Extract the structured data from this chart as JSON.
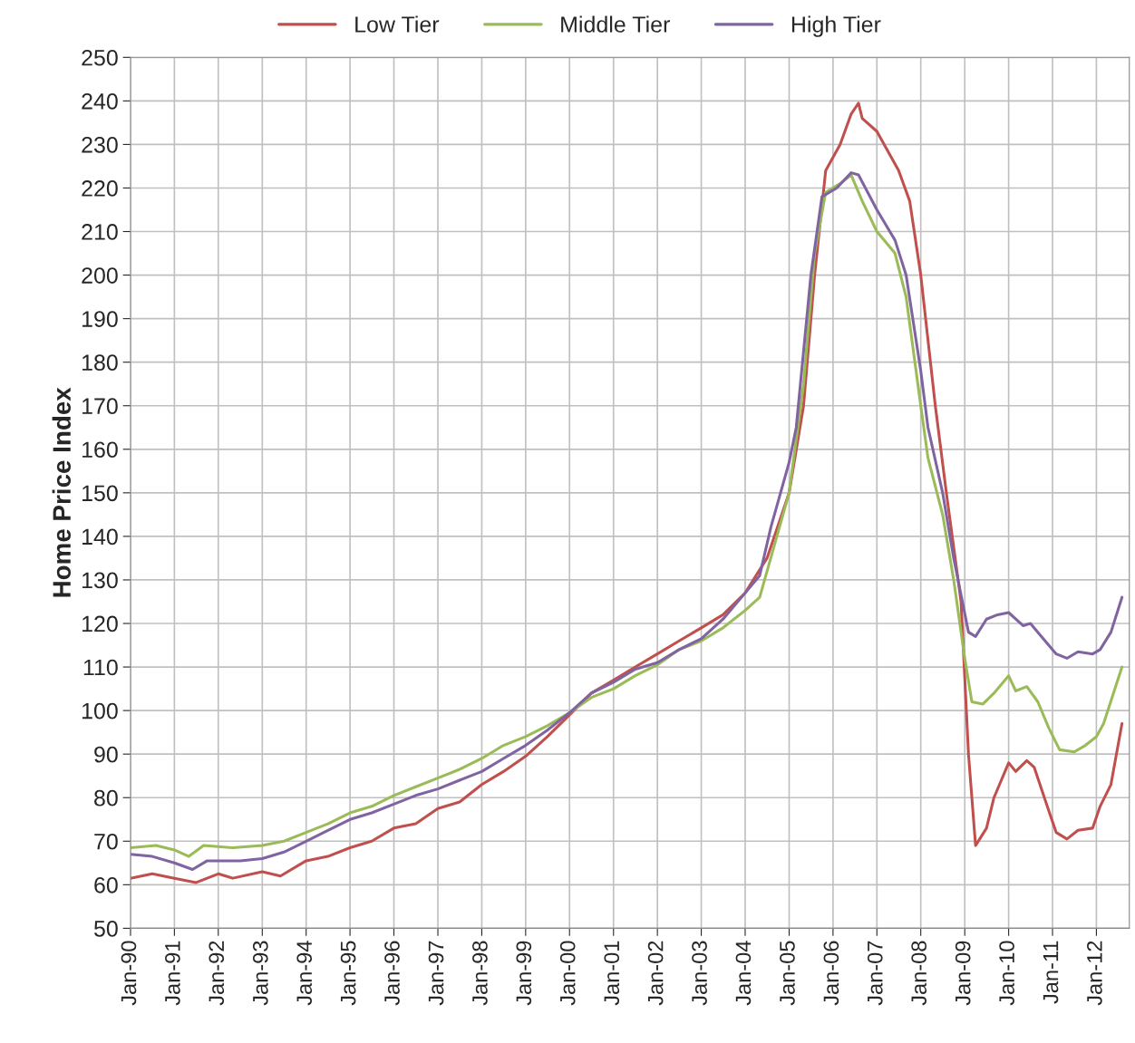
{
  "chart_data": {
    "type": "line",
    "ylabel": "Home Price Index",
    "xlim": [
      "1990-01",
      "2012-10"
    ],
    "ylim": [
      50,
      250
    ],
    "xticks": [
      {
        "value": "1990-01",
        "label": "Jan-90"
      },
      {
        "value": "1991-01",
        "label": "Jan-91"
      },
      {
        "value": "1992-01",
        "label": "Jan-92"
      },
      {
        "value": "1993-01",
        "label": "Jan-93"
      },
      {
        "value": "1994-01",
        "label": "Jan-94"
      },
      {
        "value": "1995-01",
        "label": "Jan-95"
      },
      {
        "value": "1996-01",
        "label": "Jan-96"
      },
      {
        "value": "1997-01",
        "label": "Jan-97"
      },
      {
        "value": "1998-01",
        "label": "Jan-98"
      },
      {
        "value": "1999-01",
        "label": "Jan-99"
      },
      {
        "value": "2000-01",
        "label": "Jan-00"
      },
      {
        "value": "2001-01",
        "label": "Jan-01"
      },
      {
        "value": "2002-01",
        "label": "Jan-02"
      },
      {
        "value": "2003-01",
        "label": "Jan-03"
      },
      {
        "value": "2004-01",
        "label": "Jan-04"
      },
      {
        "value": "2005-01",
        "label": "Jan-05"
      },
      {
        "value": "2006-01",
        "label": "Jan-06"
      },
      {
        "value": "2007-01",
        "label": "Jan-07"
      },
      {
        "value": "2008-01",
        "label": "Jan-08"
      },
      {
        "value": "2009-01",
        "label": "Jan-09"
      },
      {
        "value": "2010-01",
        "label": "Jan-10"
      },
      {
        "value": "2011-01",
        "label": "Jan-11"
      },
      {
        "value": "2012-01",
        "label": "Jan-12"
      }
    ],
    "yticks": [
      50,
      60,
      70,
      80,
      90,
      100,
      110,
      120,
      130,
      140,
      150,
      160,
      170,
      180,
      190,
      200,
      210,
      220,
      230,
      240,
      250
    ],
    "grid": true,
    "legend": "top",
    "marker": "none",
    "line_style": "solid",
    "series": [
      {
        "name": "Low Tier",
        "color": "#c0504d",
        "x": [
          "1990-01",
          "1990-07",
          "1991-01",
          "1991-07",
          "1992-01",
          "1992-05",
          "1993-01",
          "1993-06",
          "1994-01",
          "1994-07",
          "1995-01",
          "1995-07",
          "1996-01",
          "1996-07",
          "1997-01",
          "1997-07",
          "1998-01",
          "1998-07",
          "1999-01",
          "1999-07",
          "2000-01",
          "2000-07",
          "2001-01",
          "2001-07",
          "2002-01",
          "2002-07",
          "2003-01",
          "2003-07",
          "2004-01",
          "2004-07",
          "2005-01",
          "2005-05",
          "2005-08",
          "2005-11",
          "2006-03",
          "2006-06",
          "2006-08",
          "2006-09",
          "2007-01",
          "2007-07",
          "2007-10",
          "2008-01",
          "2008-05",
          "2008-08",
          "2008-12",
          "2009-02",
          "2009-04",
          "2009-07",
          "2009-09",
          "2010-01",
          "2010-03",
          "2010-06",
          "2010-08",
          "2010-12",
          "2011-02",
          "2011-05",
          "2011-08",
          "2011-12",
          "2012-02",
          "2012-05",
          "2012-08"
        ],
        "values": [
          61.5,
          62.5,
          61.5,
          60.5,
          62.5,
          61.5,
          63,
          62,
          65.5,
          66.5,
          68.5,
          70,
          73,
          74,
          77.5,
          79,
          83,
          86,
          89.5,
          94,
          99,
          104,
          107,
          110,
          113,
          116,
          119,
          122,
          127,
          135,
          150,
          170,
          200,
          224,
          230,
          237,
          239.5,
          236,
          233,
          224,
          217,
          200,
          170,
          150,
          125,
          90,
          69,
          73,
          80,
          88,
          86,
          88.5,
          87,
          77,
          72,
          70.5,
          72.5,
          73,
          78,
          83,
          97
        ]
      },
      {
        "name": "Middle Tier",
        "color": "#9bbb59",
        "x": [
          "1990-01",
          "1990-08",
          "1991-01",
          "1991-05",
          "1991-09",
          "1992-05",
          "1993-01",
          "1993-07",
          "1994-01",
          "1994-07",
          "1995-01",
          "1995-07",
          "1996-01",
          "1996-07",
          "1997-01",
          "1997-07",
          "1998-01",
          "1998-07",
          "1999-01",
          "1999-07",
          "2000-01",
          "2000-07",
          "2001-01",
          "2001-07",
          "2002-01",
          "2002-07",
          "2003-01",
          "2003-07",
          "2004-01",
          "2004-05",
          "2004-08",
          "2005-01",
          "2005-05",
          "2005-08",
          "2005-11",
          "2006-03",
          "2006-06",
          "2006-09",
          "2007-01",
          "2007-06",
          "2007-09",
          "2008-01",
          "2008-03",
          "2008-07",
          "2008-10",
          "2009-01",
          "2009-03",
          "2009-06",
          "2009-09",
          "2010-01",
          "2010-03",
          "2010-06",
          "2010-09",
          "2010-12",
          "2011-03",
          "2011-07",
          "2011-10",
          "2012-01",
          "2012-03",
          "2012-08"
        ],
        "values": [
          68.5,
          69,
          68,
          66.5,
          69,
          68.5,
          69,
          70,
          72,
          74,
          76.5,
          78,
          80.5,
          82.5,
          84.5,
          86.5,
          89,
          92,
          94,
          96.5,
          99.5,
          103,
          105,
          108,
          110.5,
          114,
          116,
          119,
          123,
          126,
          135,
          150,
          175,
          205,
          219,
          221,
          223,
          217,
          210,
          205,
          195,
          170,
          158,
          145,
          130,
          112,
          102,
          101.5,
          104,
          108,
          104.5,
          105.5,
          102,
          96,
          91,
          90.5,
          92,
          94,
          97,
          110
        ]
      },
      {
        "name": "High Tier",
        "color": "#8064a2",
        "x": [
          "1990-01",
          "1990-07",
          "1991-01",
          "1991-06",
          "1991-10",
          "1992-07",
          "1993-01",
          "1993-07",
          "1994-01",
          "1994-07",
          "1995-01",
          "1995-07",
          "1996-01",
          "1996-07",
          "1997-01",
          "1997-07",
          "1998-01",
          "1998-07",
          "1999-01",
          "1999-07",
          "2000-01",
          "2000-07",
          "2001-01",
          "2001-07",
          "2002-01",
          "2002-07",
          "2003-01",
          "2003-07",
          "2004-01",
          "2004-05",
          "2004-08",
          "2005-01",
          "2005-03",
          "2005-07",
          "2005-10",
          "2006-02",
          "2006-06",
          "2006-08",
          "2007-01",
          "2007-06",
          "2007-09",
          "2008-01",
          "2008-03",
          "2008-07",
          "2008-10",
          "2009-02",
          "2009-04",
          "2009-07",
          "2009-10",
          "2010-01",
          "2010-05",
          "2010-07",
          "2010-10",
          "2011-02",
          "2011-05",
          "2011-08",
          "2011-12",
          "2012-02",
          "2012-05",
          "2012-08"
        ],
        "values": [
          67,
          66.5,
          65,
          63.5,
          65.5,
          65.5,
          66,
          67.5,
          70,
          72.5,
          75,
          76.5,
          78.5,
          80.5,
          82,
          84,
          86,
          89,
          92,
          95.5,
          99.5,
          104,
          106.5,
          109.5,
          111,
          114,
          116.5,
          121,
          127,
          131,
          142,
          157,
          165,
          200,
          218,
          220,
          223.5,
          223,
          215,
          208,
          200,
          178,
          165,
          150,
          135,
          118,
          117,
          121,
          122,
          122.5,
          119.5,
          120,
          117,
          113,
          112,
          113.5,
          113,
          114,
          118,
          126
        ]
      }
    ]
  }
}
